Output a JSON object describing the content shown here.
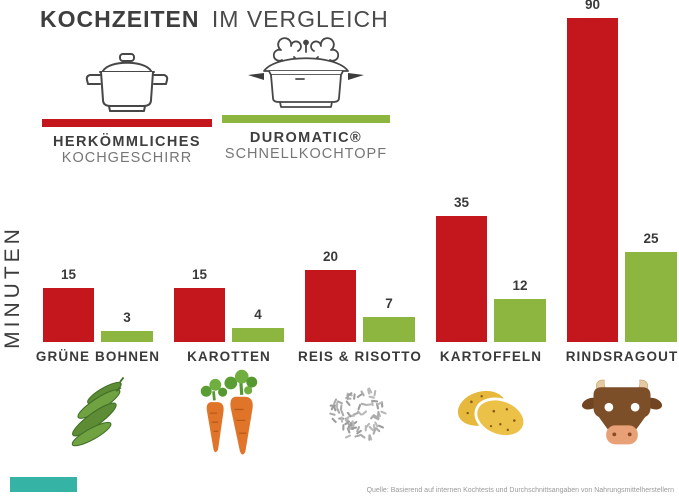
{
  "title": {
    "bold": "KOCHZEITEN",
    "light": "IM VERGLEICH"
  },
  "y_axis_label": "MINUTEN",
  "legend": {
    "conventional": {
      "line1": "HERKÖMMLICHES",
      "line2": "KOCHGESCHIRR",
      "color": "#c3161d",
      "icon": "pot-icon"
    },
    "pressure": {
      "line1": "DUROMATIC®",
      "line2": "SCHNELLKOCHTOPF",
      "color": "#8cb63f",
      "icon": "pressure-cooker-icon"
    }
  },
  "chart_data": {
    "type": "bar",
    "categories": [
      "GRÜNE BOHNEN",
      "KAROTTEN",
      "REIS & RISOTTO",
      "KARTOFFELN",
      "RINDSRAGOUT"
    ],
    "series": [
      {
        "name": "Herkömmliches Kochgeschirr",
        "color": "#c3161d",
        "values": [
          15,
          15,
          20,
          35,
          90
        ]
      },
      {
        "name": "Duromatic Schnellkochtopf",
        "color": "#8cb63f",
        "values": [
          3,
          4,
          7,
          12,
          25
        ]
      }
    ],
    "title": "Kochzeiten im Vergleich",
    "xlabel": "",
    "ylabel": "Minuten",
    "ylim": [
      0,
      90
    ],
    "grid": false,
    "value_labels": true,
    "legend_position": "top-left",
    "category_icons": [
      "green-beans-icon",
      "carrots-icon",
      "rice-icon",
      "potatoes-icon",
      "beef-icon"
    ]
  },
  "footer": {
    "source": "Quelle: Basierend auf internen Kochtests und Durchschnittsangaben von Nahrungsmittelherstellern",
    "brand_color": "#35b3a4"
  },
  "colors": {
    "red": "#c3161d",
    "green": "#8cb63f",
    "text_dark": "#3a3a3a",
    "text_light": "#767676"
  }
}
